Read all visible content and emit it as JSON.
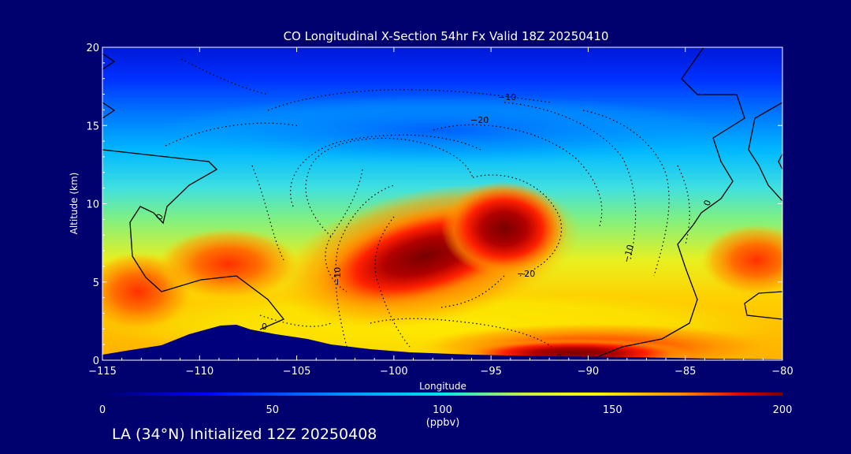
{
  "chart_data": {
    "type": "heatmap",
    "title": "CO Longitudinal X-Section 54hr  Fx Valid 18Z 20250410",
    "xlabel": "Longitude",
    "ylabel": "Altitude (km)",
    "xlim": [
      -115,
      -80
    ],
    "ylim": [
      0,
      20
    ],
    "xticks": [
      "−115",
      "−110",
      "−105",
      "−100",
      "−95",
      "−90",
      "−85",
      "−80"
    ],
    "yticks": [
      "0",
      "5",
      "10",
      "15",
      "20"
    ],
    "colorbar": {
      "label": "(ppbv)",
      "range": [
        0,
        200
      ],
      "ticks": [
        "0",
        "50",
        "100",
        "150",
        "200"
      ]
    },
    "co_maxima_ppbv": [
      {
        "lon": -99,
        "alt": 6,
        "value": 200
      },
      {
        "lon": -89,
        "alt": 0.5,
        "value": 185
      },
      {
        "lon": -114,
        "alt": 4,
        "value": 150
      },
      {
        "lon": -80.5,
        "alt": 6,
        "value": 150
      }
    ],
    "contour_labels": [
      "0",
      "0",
      "0",
      "0",
      "−10",
      "−20",
      "−10",
      "−20",
      "−10"
    ]
  },
  "footer": "LA (34°N) Initialized 12Z 20250408"
}
